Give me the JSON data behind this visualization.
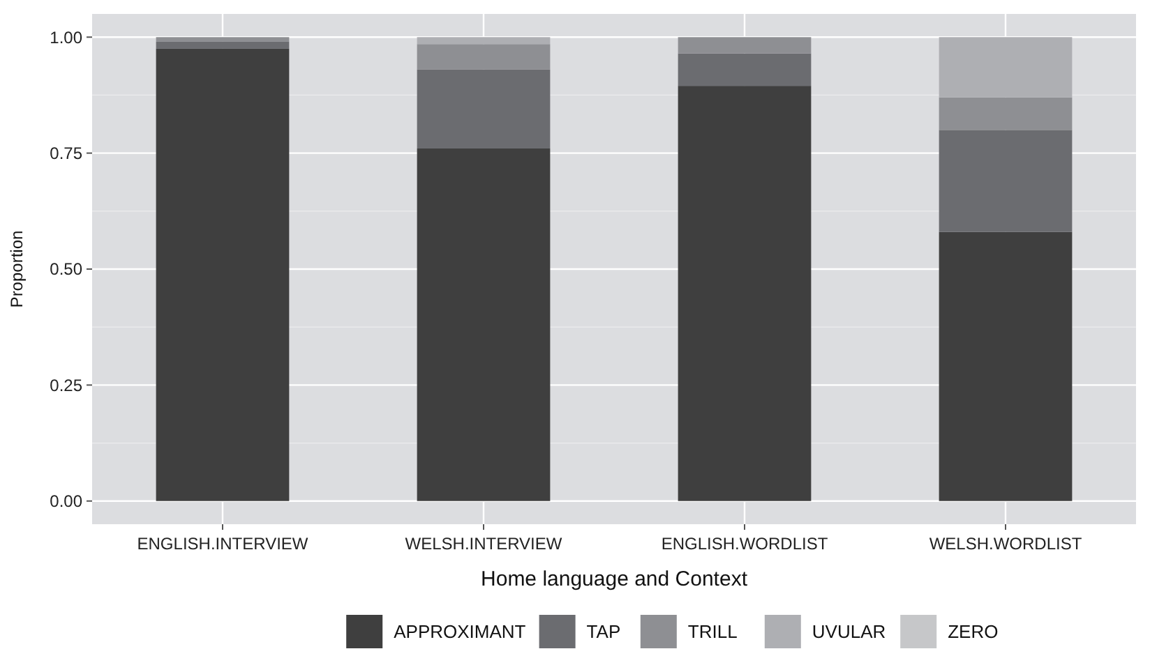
{
  "chart_data": {
    "type": "bar",
    "stacked": true,
    "xlabel": "Home language and Context",
    "ylabel": "Proportion",
    "categories": [
      "ENGLISH.INTERVIEW",
      "WELSH.INTERVIEW",
      "ENGLISH.WORDLIST",
      "WELSH.WORDLIST"
    ],
    "series": [
      {
        "name": "APPROXIMANT",
        "color": "#3f3f3f",
        "values": [
          0.975,
          0.76,
          0.895,
          0.58
        ]
      },
      {
        "name": "TAP",
        "color": "#6b6c70",
        "values": [
          0.015,
          0.17,
          0.07,
          0.22
        ]
      },
      {
        "name": "TRILL",
        "color": "#8e8f93",
        "values": [
          0.01,
          0.055,
          0.035,
          0.07
        ]
      },
      {
        "name": "UVULAR",
        "color": "#aeafb3",
        "values": [
          null,
          0.015,
          0,
          0.13
        ]
      },
      {
        "name": "ZERO",
        "color": "#c6c7c9",
        "values": [
          0,
          0,
          0,
          0
        ]
      }
    ],
    "ylim": [
      -0.05,
      1.05
    ],
    "yticks": [
      {
        "value": 0,
        "label": "0.00"
      },
      {
        "value": 0.25,
        "label": "0.25"
      },
      {
        "value": 0.5,
        "label": "0.50"
      },
      {
        "value": 0.75,
        "label": "0.75"
      },
      {
        "value": 1,
        "label": "1.00"
      }
    ],
    "grid": true,
    "legend": "bottom"
  }
}
